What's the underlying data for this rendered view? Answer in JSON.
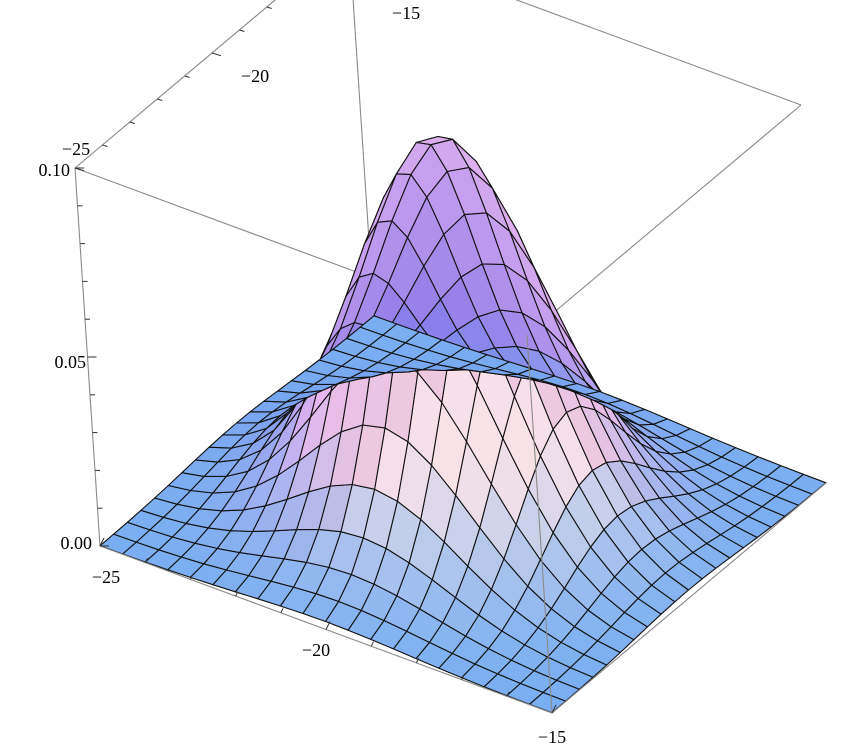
{
  "chart_data": {
    "type": "surface3d",
    "title": "",
    "x_range": [
      -25,
      -15
    ],
    "y_range": [
      -25,
      -15
    ],
    "z_range": [
      0.0,
      0.1
    ],
    "grid_points": 21,
    "peak": {
      "x": -20,
      "y": -20,
      "z": 0.1
    },
    "spread": 1.8,
    "x_ticks": [
      "−25",
      "−20",
      "−15"
    ],
    "y_ticks": [
      "−25",
      "−20",
      "−15"
    ],
    "z_ticks": [
      "0.00",
      "0.05",
      "0.10"
    ],
    "x_tick_values": [
      -25,
      -20,
      -15
    ],
    "y_tick_values": [
      -25,
      -20,
      -15
    ],
    "z_tick_values": [
      0.0,
      0.05,
      0.1
    ],
    "box": true,
    "mesh": true,
    "colors": {
      "low": "#7aaef2",
      "left_face": "#5a5ae6",
      "mid": "#e8b6f0",
      "right_face": "#f6e2c6",
      "highlight": "#fff4f8",
      "mesh_line": "#111111",
      "box_line": "#8a8a8a"
    }
  }
}
